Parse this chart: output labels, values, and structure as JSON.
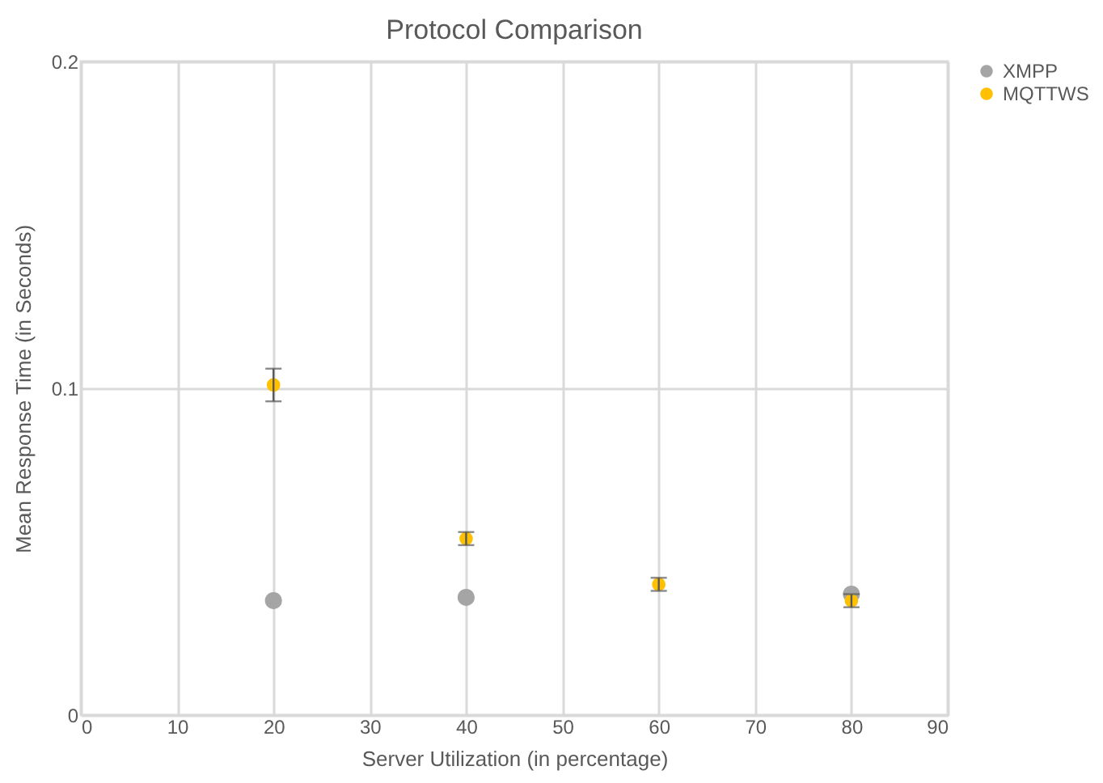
{
  "chart_data": {
    "type": "scatter",
    "title": "Protocol Comparison",
    "xlabel": "Server Utilization (in percentage)",
    "ylabel": "Mean Response Time (in Seconds)",
    "x": [
      20,
      40,
      60,
      80
    ],
    "series": [
      {
        "name": "XMPP",
        "color": "#a5a5a5",
        "values": [
          0.035,
          0.036,
          null,
          0.037
        ]
      },
      {
        "name": "MQTTWS",
        "color": "#ffc000",
        "values": [
          0.101,
          0.054,
          0.04,
          0.035
        ],
        "errors": [
          0.005,
          0.002,
          0.002,
          0.002
        ]
      }
    ],
    "xlim": [
      0,
      90
    ],
    "xticks": [
      0,
      10,
      20,
      30,
      40,
      50,
      60,
      70,
      80,
      90
    ],
    "ylim": [
      0,
      0.2
    ],
    "yticks": [
      0,
      0.1,
      0.2
    ],
    "grid": true,
    "legend": "right",
    "marker": "circle"
  }
}
